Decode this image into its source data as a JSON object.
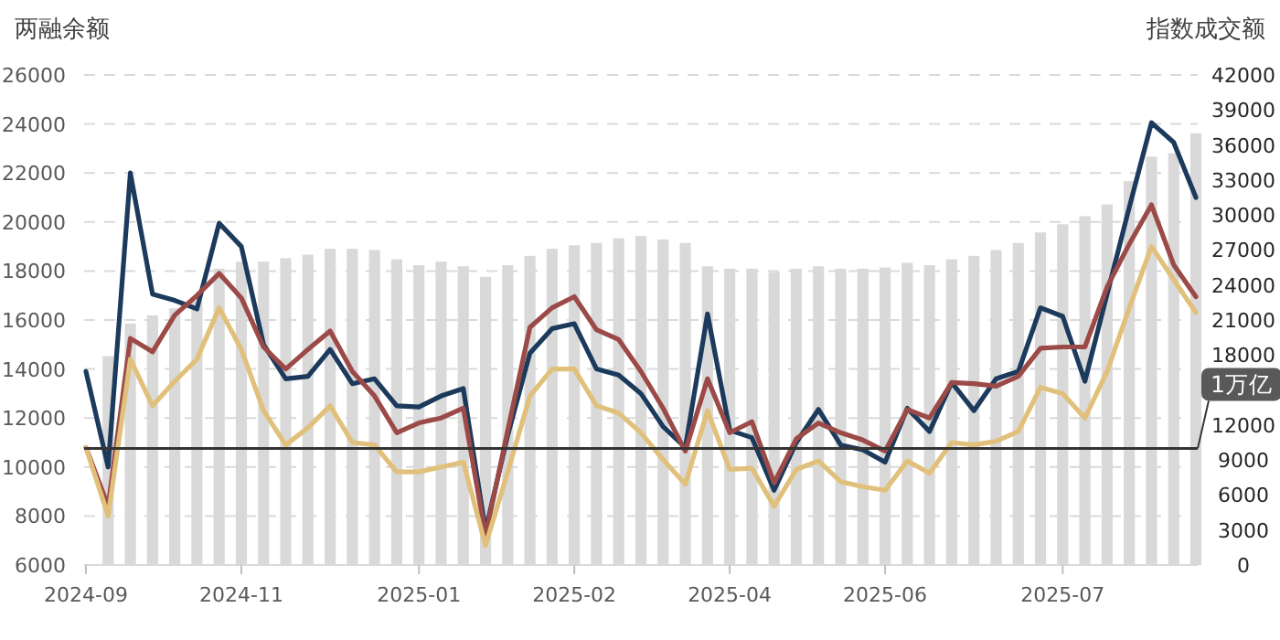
{
  "chart_data": {
    "type": "line",
    "ylabel": "两融余额",
    "y2label": "指数成交额",
    "categories": [
      "2024-09",
      null,
      null,
      null,
      null,
      null,
      null,
      "2024-11",
      null,
      null,
      null,
      null,
      null,
      null,
      null,
      "2025-01",
      null,
      null,
      null,
      null,
      null,
      null,
      "2025-02",
      null,
      null,
      null,
      null,
      null,
      null,
      "2025-04",
      null,
      null,
      null,
      null,
      null,
      null,
      "2025-06",
      null,
      null,
      null,
      null,
      null,
      null,
      null,
      "2025-07",
      null,
      null,
      null,
      null,
      null,
      null
    ],
    "series": [
      {
        "type": "bar",
        "axis": "y2",
        "color": "#d9d9d9",
        "values": [
          null,
          17900,
          20700,
          21400,
          22000,
          22600,
          25400,
          26000,
          26000,
          26300,
          26600,
          27100,
          27100,
          27000,
          26200,
          25700,
          26000,
          25600,
          24700,
          25700,
          26500,
          27100,
          27400,
          27600,
          28000,
          28200,
          27900,
          27600,
          25600,
          25400,
          25400,
          25100,
          25400,
          25600,
          25400,
          25400,
          25500,
          25900,
          25700,
          26200,
          26500,
          27000,
          27600,
          28500,
          29200,
          29900,
          30900,
          32900,
          35000,
          35300,
          37000
        ]
      },
      {
        "color": "#1b3a5c",
        "values": [
          13900,
          10000,
          22000,
          17050,
          16800,
          16450,
          19950,
          19000,
          15000,
          13600,
          13700,
          14800,
          13400,
          13600,
          12500,
          12450,
          12900,
          13200,
          7400,
          11300,
          14650,
          15650,
          15850,
          14000,
          13750,
          13000,
          11650,
          10800,
          16250,
          11500,
          11200,
          9050,
          11000,
          12350,
          10900,
          10700,
          10200,
          12400,
          11450,
          13450,
          12300,
          13600,
          13900,
          16500,
          16150,
          13500,
          17050,
          20600,
          24050,
          23250,
          21000
        ]
      },
      {
        "color": "#9b4a47",
        "values": [
          10800,
          8400,
          15250,
          14700,
          16200,
          17000,
          17900,
          16900,
          14900,
          14000,
          14800,
          15550,
          13900,
          12900,
          11400,
          11800,
          12000,
          12400,
          7200,
          11500,
          15700,
          16500,
          16950,
          15600,
          15200,
          13900,
          12400,
          10650,
          13600,
          11400,
          11850,
          9350,
          11150,
          11800,
          11400,
          11100,
          10650,
          12350,
          12000,
          13450,
          13400,
          13300,
          13700,
          14850,
          14900,
          14900,
          17350,
          19100,
          20700,
          18250,
          16950
        ]
      },
      {
        "color": "#e0c07a",
        "values": [
          10800,
          8000,
          14400,
          12500,
          13500,
          14400,
          16500,
          14800,
          12300,
          10900,
          11600,
          12500,
          11000,
          10900,
          9800,
          9800,
          10000,
          10200,
          6800,
          9800,
          12900,
          14000,
          14000,
          12500,
          12200,
          11400,
          10300,
          9300,
          12300,
          9900,
          9950,
          8400,
          9900,
          10250,
          9400,
          9200,
          9050,
          10250,
          9750,
          11000,
          10900,
          11050,
          11450,
          13250,
          13000,
          12000,
          13900,
          16500,
          19000,
          17650,
          16300
        ]
      }
    ],
    "ylim": [
      6000,
      26000
    ],
    "yticks": [
      6000,
      8000,
      10000,
      12000,
      14000,
      16000,
      18000,
      20000,
      22000,
      24000,
      26000
    ],
    "y2lim": [
      0,
      42000
    ],
    "y2ticks": [
      0,
      3000,
      6000,
      9000,
      12000,
      18000,
      21000,
      24000,
      27000,
      30000,
      33000,
      36000,
      39000,
      42000
    ],
    "ref_lines": [
      {
        "axis": "y2",
        "value": 10000,
        "label": "1万亿",
        "color": "#333333"
      }
    ],
    "grid": "y"
  }
}
